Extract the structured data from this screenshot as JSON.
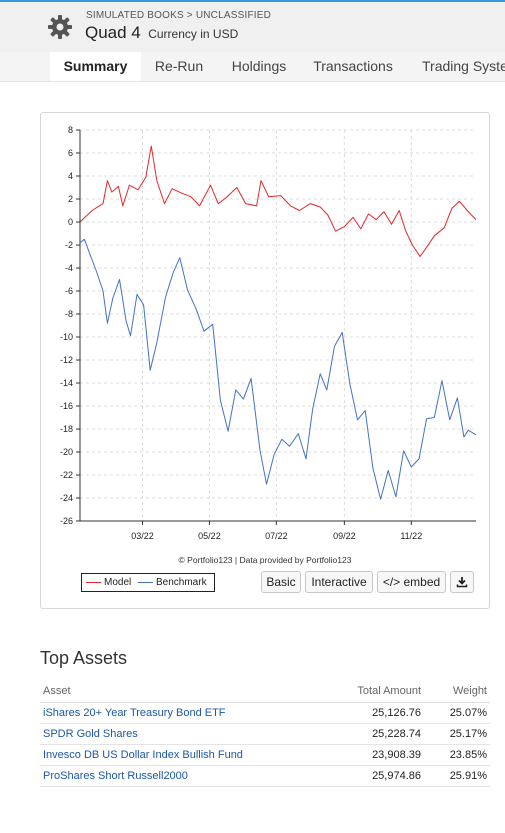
{
  "header": {
    "breadcrumb": "SIMULATED BOOKS > UNCLASSIFIED",
    "title": "Quad 4",
    "currency": "Currency in USD",
    "icon": "gear-icon"
  },
  "tabs": [
    {
      "label": "Summary",
      "active": true
    },
    {
      "label": "Re-Run",
      "active": false
    },
    {
      "label": "Holdings",
      "active": false
    },
    {
      "label": "Transactions",
      "active": false
    },
    {
      "label": "Trading Syster",
      "active": false
    }
  ],
  "chart_data": {
    "type": "line",
    "title": "",
    "xlabel": "",
    "ylabel": "",
    "ylim": [
      -26,
      8
    ],
    "yticks": [
      8,
      6,
      4,
      2,
      0,
      -2,
      -4,
      -6,
      -8,
      -10,
      -12,
      -14,
      -16,
      -18,
      -20,
      -22,
      -24,
      -26
    ],
    "xlim": [
      "2022-01-03",
      "2022-12-30"
    ],
    "xticks": [
      {
        "label": "03/22",
        "date": "2022-03-01"
      },
      {
        "label": "05/22",
        "date": "2022-05-01"
      },
      {
        "label": "07/22",
        "date": "2022-07-01"
      },
      {
        "label": "09/22",
        "date": "2022-09-01"
      },
      {
        "label": "11/22",
        "date": "2022-11-01"
      }
    ],
    "grid": true,
    "legend": "bottom-left",
    "credit": "© Portfolio123 | Data provided by Portfolio123",
    "series": [
      {
        "name": "Model",
        "color": "#e5262b",
        "points": [
          [
            "2022-01-03",
            0.0
          ],
          [
            "2022-01-14",
            1.0
          ],
          [
            "2022-01-24",
            1.6
          ],
          [
            "2022-01-28",
            3.6
          ],
          [
            "2022-02-01",
            2.6
          ],
          [
            "2022-02-07",
            3.1
          ],
          [
            "2022-02-11",
            1.4
          ],
          [
            "2022-02-17",
            3.2
          ],
          [
            "2022-02-25",
            2.8
          ],
          [
            "2022-03-04",
            3.9
          ],
          [
            "2022-03-09",
            6.6
          ],
          [
            "2022-03-14",
            3.6
          ],
          [
            "2022-03-21",
            1.6
          ],
          [
            "2022-03-28",
            2.9
          ],
          [
            "2022-04-06",
            2.5
          ],
          [
            "2022-04-14",
            2.2
          ],
          [
            "2022-04-22",
            1.4
          ],
          [
            "2022-05-02",
            3.2
          ],
          [
            "2022-05-09",
            1.6
          ],
          [
            "2022-05-16",
            2.1
          ],
          [
            "2022-05-26",
            3.0
          ],
          [
            "2022-06-03",
            1.6
          ],
          [
            "2022-06-13",
            1.4
          ],
          [
            "2022-06-17",
            3.6
          ],
          [
            "2022-06-24",
            2.2
          ],
          [
            "2022-07-05",
            2.3
          ],
          [
            "2022-07-14",
            1.4
          ],
          [
            "2022-07-22",
            1.0
          ],
          [
            "2022-08-01",
            1.6
          ],
          [
            "2022-08-10",
            1.3
          ],
          [
            "2022-08-17",
            0.6
          ],
          [
            "2022-08-24",
            -0.8
          ],
          [
            "2022-09-01",
            -0.4
          ],
          [
            "2022-09-09",
            0.4
          ],
          [
            "2022-09-16",
            -0.6
          ],
          [
            "2022-09-23",
            0.7
          ],
          [
            "2022-09-30",
            0.2
          ],
          [
            "2022-10-07",
            0.9
          ],
          [
            "2022-10-14",
            -0.2
          ],
          [
            "2022-10-21",
            1.0
          ],
          [
            "2022-10-27",
            -0.8
          ],
          [
            "2022-11-02",
            -2.0
          ],
          [
            "2022-11-09",
            -3.0
          ],
          [
            "2022-11-15",
            -2.2
          ],
          [
            "2022-11-22",
            -1.2
          ],
          [
            "2022-12-01",
            -0.5
          ],
          [
            "2022-12-08",
            1.2
          ],
          [
            "2022-12-15",
            1.8
          ],
          [
            "2022-12-22",
            1.0
          ],
          [
            "2022-12-30",
            0.2
          ]
        ]
      },
      {
        "name": "Benchmark",
        "color": "#4472c4",
        "points": [
          [
            "2022-01-03",
            -1.8
          ],
          [
            "2022-01-07",
            -1.5
          ],
          [
            "2022-01-12",
            -2.8
          ],
          [
            "2022-01-18",
            -4.3
          ],
          [
            "2022-01-24",
            -6.0
          ],
          [
            "2022-01-28",
            -8.8
          ],
          [
            "2022-02-02",
            -6.6
          ],
          [
            "2022-02-08",
            -5.0
          ],
          [
            "2022-02-14",
            -8.6
          ],
          [
            "2022-02-18",
            -9.9
          ],
          [
            "2022-02-24",
            -6.3
          ],
          [
            "2022-03-02",
            -7.2
          ],
          [
            "2022-03-08",
            -12.9
          ],
          [
            "2022-03-14",
            -10.5
          ],
          [
            "2022-03-22",
            -6.5
          ],
          [
            "2022-03-29",
            -4.4
          ],
          [
            "2022-04-04",
            -3.1
          ],
          [
            "2022-04-11",
            -5.9
          ],
          [
            "2022-04-19",
            -7.6
          ],
          [
            "2022-04-26",
            -9.5
          ],
          [
            "2022-05-04",
            -8.9
          ],
          [
            "2022-05-11",
            -15.5
          ],
          [
            "2022-05-18",
            -18.2
          ],
          [
            "2022-05-25",
            -14.6
          ],
          [
            "2022-06-01",
            -15.4
          ],
          [
            "2022-06-08",
            -13.6
          ],
          [
            "2022-06-16",
            -19.8
          ],
          [
            "2022-06-22",
            -22.8
          ],
          [
            "2022-06-29",
            -20.2
          ],
          [
            "2022-07-06",
            -18.9
          ],
          [
            "2022-07-13",
            -19.5
          ],
          [
            "2022-07-21",
            -18.4
          ],
          [
            "2022-07-28",
            -20.6
          ],
          [
            "2022-08-03",
            -16.3
          ],
          [
            "2022-08-10",
            -13.2
          ],
          [
            "2022-08-16",
            -14.6
          ],
          [
            "2022-08-23",
            -10.8
          ],
          [
            "2022-08-30",
            -9.6
          ],
          [
            "2022-09-06",
            -14.1
          ],
          [
            "2022-09-13",
            -17.2
          ],
          [
            "2022-09-20",
            -16.4
          ],
          [
            "2022-09-27",
            -21.4
          ],
          [
            "2022-10-04",
            -24.1
          ],
          [
            "2022-10-11",
            -21.6
          ],
          [
            "2022-10-18",
            -23.9
          ],
          [
            "2022-10-25",
            -19.9
          ],
          [
            "2022-11-01",
            -21.3
          ],
          [
            "2022-11-08",
            -20.6
          ],
          [
            "2022-11-15",
            -17.1
          ],
          [
            "2022-11-22",
            -17.0
          ],
          [
            "2022-11-29",
            -13.8
          ],
          [
            "2022-12-06",
            -17.2
          ],
          [
            "2022-12-13",
            -15.3
          ],
          [
            "2022-12-19",
            -18.7
          ],
          [
            "2022-12-23",
            -18.1
          ],
          [
            "2022-12-30",
            -18.5
          ]
        ]
      }
    ]
  },
  "chart_buttons": {
    "basic": "Basic",
    "interactive": "Interactive",
    "embed": "</> embed",
    "download_icon": "download-icon"
  },
  "top_assets": {
    "title": "Top Assets",
    "columns": [
      "Asset",
      "Total Amount",
      "Weight"
    ],
    "rows": [
      {
        "asset": "iShares 20+ Year Treasury Bond ETF",
        "amount": "25,126.76",
        "weight": "25.07%"
      },
      {
        "asset": "SPDR Gold Shares",
        "amount": "25,228.74",
        "weight": "25.17%"
      },
      {
        "asset": "Invesco DB US Dollar Index Bullish Fund",
        "amount": "23,908.39",
        "weight": "23.85%"
      },
      {
        "asset": "ProShares Short Russell2000",
        "amount": "25,974.86",
        "weight": "25.91%"
      }
    ]
  }
}
